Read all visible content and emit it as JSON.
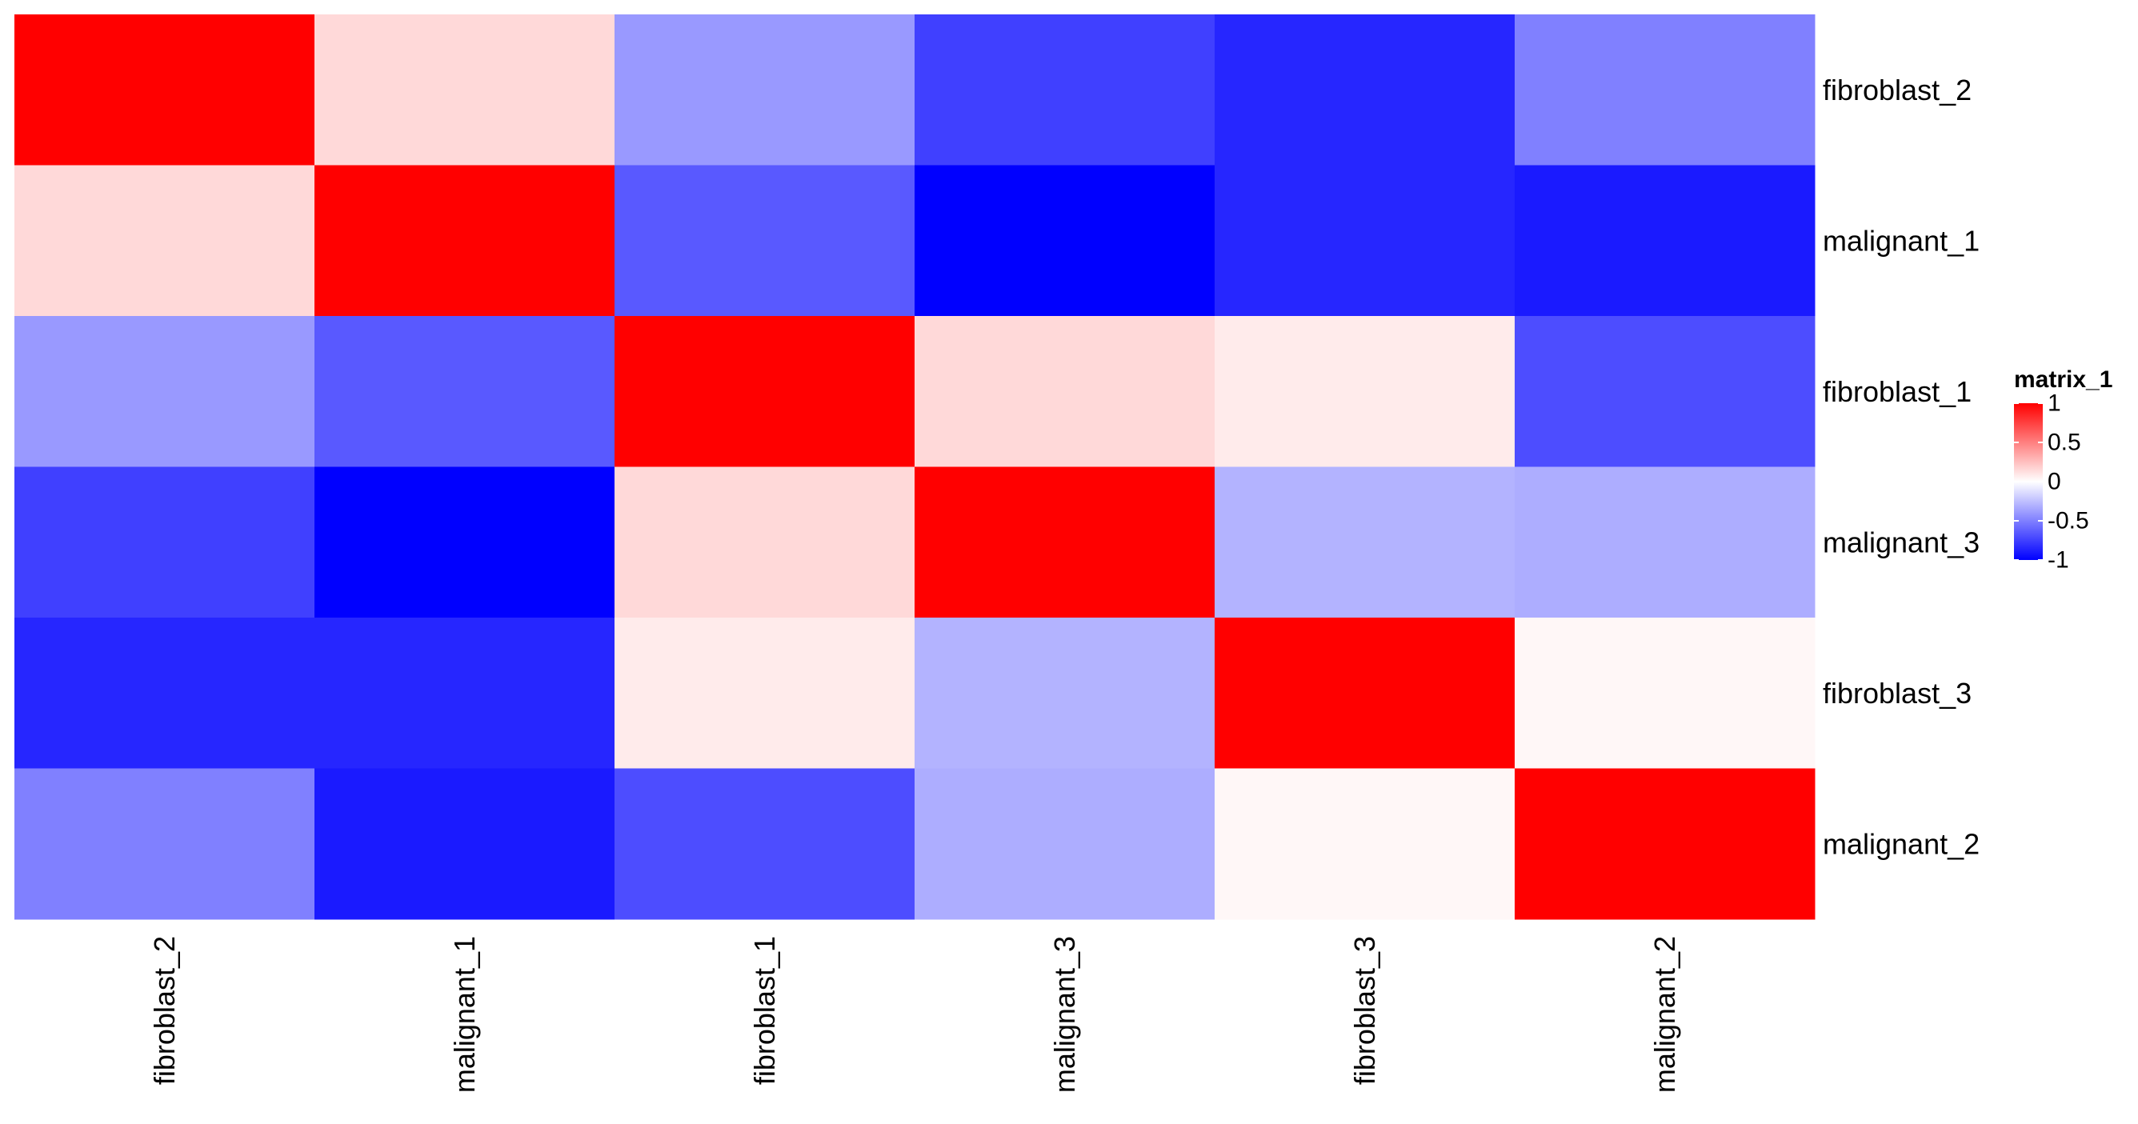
{
  "chart_data": {
    "type": "heatmap",
    "title": "",
    "xlabel": "",
    "ylabel": "",
    "rows": [
      "fibroblast_2",
      "malignant_1",
      "fibroblast_1",
      "malignant_3",
      "fibroblast_3",
      "malignant_2"
    ],
    "columns": [
      "fibroblast_2",
      "malignant_1",
      "fibroblast_1",
      "malignant_3",
      "fibroblast_3",
      "malignant_2"
    ],
    "values": [
      [
        1.0,
        0.15,
        -0.4,
        -0.75,
        -0.85,
        -0.5
      ],
      [
        0.15,
        1.0,
        -0.65,
        -1.0,
        -0.85,
        -0.9
      ],
      [
        -0.4,
        -0.65,
        1.0,
        0.15,
        0.08,
        -0.7
      ],
      [
        -0.75,
        -1.0,
        0.15,
        1.0,
        -0.3,
        -0.32
      ],
      [
        -0.85,
        -0.85,
        0.08,
        -0.3,
        1.0,
        0.03
      ],
      [
        -0.5,
        -0.9,
        -0.7,
        -0.32,
        0.03,
        1.0
      ]
    ],
    "color_scale": {
      "min": -1,
      "mid": 0,
      "max": 1,
      "min_color": "#0000ff",
      "mid_color": "#ffffff",
      "max_color": "#ff0000"
    },
    "legend": {
      "title": "matrix_1",
      "ticks": [
        1,
        0.5,
        0,
        -0.5,
        -1
      ],
      "tick_labels": [
        "1",
        "0.5",
        "0",
        "-0.5",
        "-1"
      ],
      "position": "right"
    },
    "row_label_position": "right",
    "column_label_position": "bottom",
    "grid": false
  }
}
